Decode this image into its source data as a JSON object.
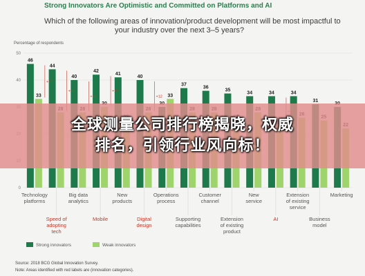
{
  "header": {
    "title": "Strong Innovators Are Optimistic and Committed on Platforms and AI",
    "question_line1": "Which of the following areas of innovation/product development will be most impactful to",
    "question_line2": "your industry over the next 3–5 years?",
    "y_caption": "Percentage of respondents"
  },
  "chart_data": {
    "type": "bar",
    "ylim": [
      0,
      50
    ],
    "yticks": [
      0,
      10,
      20,
      30,
      40,
      50
    ],
    "categories": [
      [
        "Technology",
        "platforms"
      ],
      [
        "Speed of",
        "adopting",
        "tech"
      ],
      [
        "Big data",
        "analytics"
      ],
      [
        "Mobile"
      ],
      [
        "New",
        "products"
      ],
      [
        "Digital",
        "design"
      ],
      [
        "Operations",
        "process"
      ],
      [
        "Supporting",
        "capabilities"
      ],
      [
        "Customer",
        "channel"
      ],
      [
        "Extension",
        "of existing",
        "product"
      ],
      [
        "New",
        "service"
      ],
      [
        "AI"
      ],
      [
        "Extension",
        "of existing",
        "service"
      ],
      [
        "Business",
        "model"
      ],
      [
        "Marketing"
      ]
    ],
    "red_label_indices": [
      1,
      3,
      5,
      11
    ],
    "series": [
      {
        "name": "Strong innovators",
        "color": "#1e7a4a",
        "values": [
          46,
          44,
          40,
          42,
          41,
          40,
          30,
          37,
          36,
          35,
          34,
          34,
          34,
          31,
          30
        ]
      },
      {
        "name": "Weak innovators",
        "color": "#9fd36b",
        "values": [
          33,
          28,
          28,
          30,
          25,
          28,
          33,
          28,
          28,
          25,
          28,
          23,
          26,
          25,
          22
        ]
      }
    ],
    "differences": [
      "+13",
      "+16",
      "+12",
      "+12",
      "",
      "+12",
      "",
      "",
      "",
      "",
      "",
      "+11",
      "",
      "",
      ""
    ]
  },
  "legend": {
    "strong": "Strong innovators",
    "weak": "Weak innovators"
  },
  "footer": {
    "source": "Source: 2018 BCG Global Innovation Survey.",
    "note": "Note: Areas identified with red labels are (innovation categories)."
  },
  "banner": {
    "line1": "全球测量公司排行榜揭晓，权威",
    "line2": "排名，引领行业风向标！"
  }
}
